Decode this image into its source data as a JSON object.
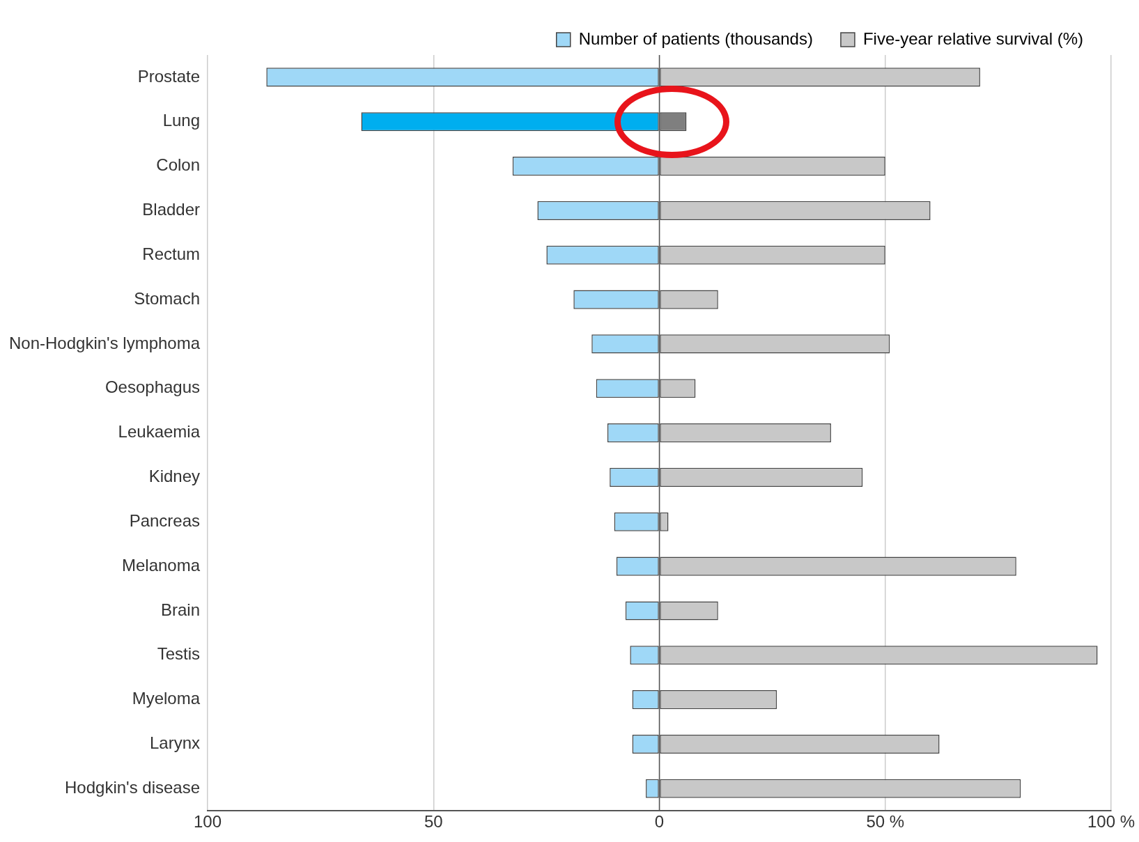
{
  "chart_data": {
    "type": "bar",
    "orientation": "horizontal",
    "stacked": true,
    "categories": [
      "Prostate",
      "Lung",
      "Colon",
      "Bladder",
      "Rectum",
      "Stomach",
      "Non-Hodgkin's lymphoma",
      "Oesophagus",
      "Leukaemia",
      "Kidney",
      "Pancreas",
      "Melanoma",
      "Brain",
      "Testis",
      "Myeloma",
      "Larynx",
      "Hodgkin's disease"
    ],
    "series": [
      {
        "name": "Number of patients (thousands)",
        "color": "#9fd8f7",
        "colors": [
          "#9fd8f7",
          "#00aeef",
          "#9fd8f7",
          "#9fd8f7",
          "#9fd8f7",
          "#9fd8f7",
          "#9fd8f7",
          "#9fd8f7",
          "#9fd8f7",
          "#9fd8f7",
          "#9fd8f7",
          "#9fd8f7",
          "#9fd8f7",
          "#9fd8f7",
          "#9fd8f7",
          "#9fd8f7",
          "#9fd8f7"
        ],
        "values": [
          -87,
          -66,
          -32.5,
          -27,
          -25,
          -19,
          -15,
          -14,
          -11.5,
          -11,
          -10,
          -9.5,
          -7.5,
          -6.5,
          -6,
          -6,
          -3
        ]
      },
      {
        "name": "Five-year relative survival (%)",
        "color": "#c8c8c8",
        "colors": [
          "#c8c8c8",
          "#7f7f7f",
          "#c8c8c8",
          "#c8c8c8",
          "#c8c8c8",
          "#c8c8c8",
          "#c8c8c8",
          "#c8c8c8",
          "#c8c8c8",
          "#c8c8c8",
          "#c8c8c8",
          "#c8c8c8",
          "#c8c8c8",
          "#c8c8c8",
          "#c8c8c8",
          "#c8c8c8",
          "#c8c8c8"
        ],
        "values": [
          71,
          6,
          50,
          60,
          50,
          13,
          51,
          8,
          38,
          45,
          2,
          79,
          13,
          97,
          26,
          62,
          80
        ]
      }
    ],
    "xlim": [
      -100,
      100
    ],
    "xticks": [
      {
        "value": -100,
        "label": "100"
      },
      {
        "value": -50,
        "label": "50"
      },
      0,
      {
        "value": 50,
        "label": "50 %"
      },
      {
        "value": 100,
        "label": "100 %"
      }
    ],
    "grid": "x",
    "legend": "top right"
  }
}
